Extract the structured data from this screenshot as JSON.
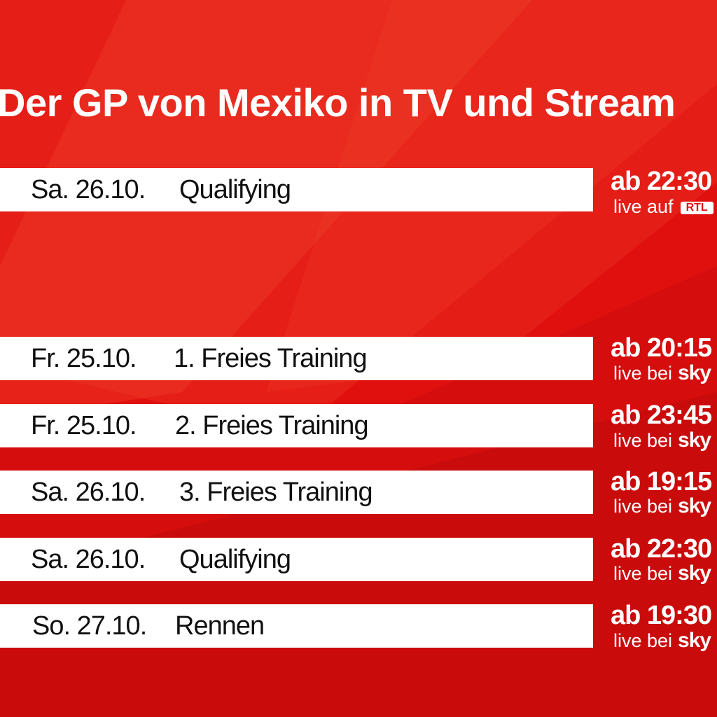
{
  "title": "Der GP von Mexiko in TV und Stream",
  "colors": {
    "background": "#e0100f",
    "row": "#ffffff",
    "text": "#111111",
    "accent_text": "#ffffff"
  },
  "featured": {
    "date": "Sa. 26.10.",
    "event": "Qualifying",
    "time": "ab 22:30",
    "channel_prefix": "live auf",
    "channel_logo": "RTL"
  },
  "schedule": [
    {
      "date": "Fr. 25.10.",
      "event": "1. Freies Training",
      "time": "ab 20:15",
      "channel_prefix": "live bei",
      "channel_logo": "sky"
    },
    {
      "date": "Fr. 25.10.",
      "event": "2. Freies Training",
      "time": "ab 23:45",
      "channel_prefix": "live bei",
      "channel_logo": "sky"
    },
    {
      "date": "Sa. 26.10.",
      "event": "3. Freies Training",
      "time": "ab 19:15",
      "channel_prefix": "live bei",
      "channel_logo": "sky"
    },
    {
      "date": "Sa. 26.10.",
      "event": "Qualifying",
      "time": "ab 22:30",
      "channel_prefix": "live bei",
      "channel_logo": "sky"
    },
    {
      "date": "So. 27.10.",
      "event": "Rennen",
      "time": "ab 19:30",
      "channel_prefix": "live bei",
      "channel_logo": "sky"
    }
  ]
}
